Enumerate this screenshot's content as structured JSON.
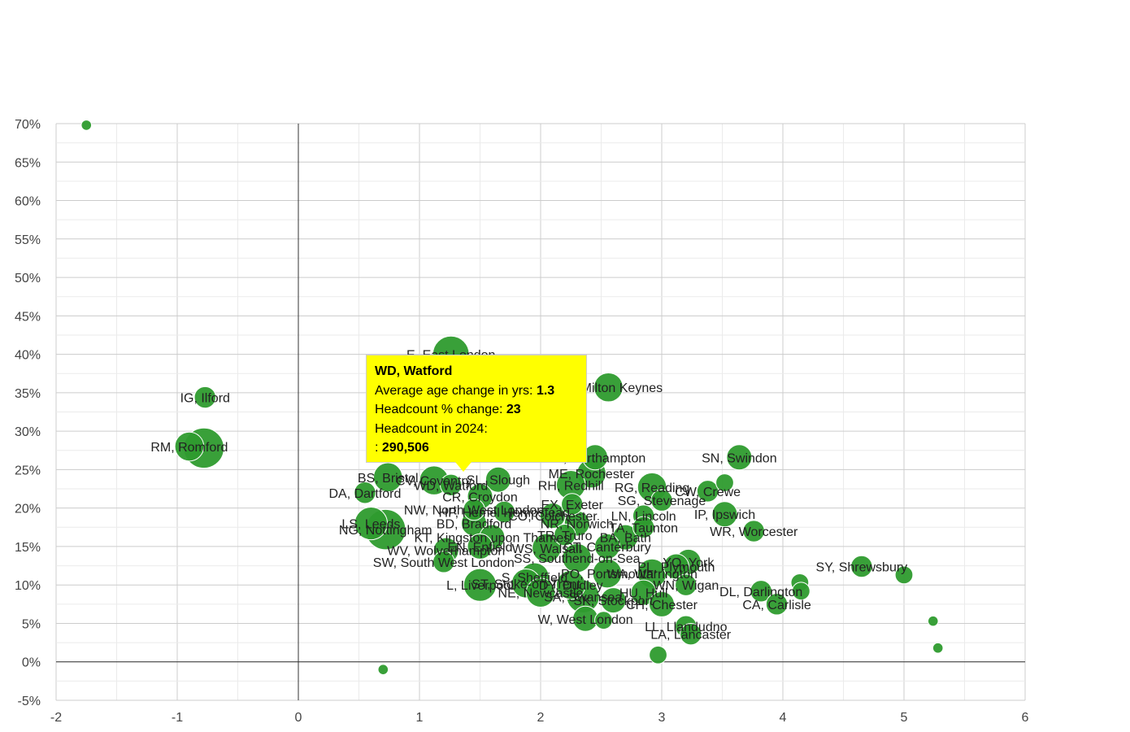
{
  "chart_data": {
    "type": "scatter",
    "xlim": [
      -2,
      6
    ],
    "ylim": [
      -5,
      70
    ],
    "x_ticks": [
      "-2",
      "-1",
      "0",
      "1",
      "2",
      "3",
      "4",
      "5",
      "6"
    ],
    "y_ticks": [
      "-5%",
      "0%",
      "5%",
      "10%",
      "15%",
      "20%",
      "25%",
      "30%",
      "35%",
      "40%",
      "45%",
      "50%",
      "55%",
      "60%",
      "65%",
      "70%"
    ],
    "grid": true,
    "bubble_color": "#2e9b2e",
    "points": [
      {
        "label": "",
        "x": -1.75,
        "y": 69.8,
        "size": 1
      },
      {
        "label": "E, East London",
        "x": 1.26,
        "y": 40.0,
        "size": 8
      },
      {
        "label": "IG, Ilford",
        "x": -0.77,
        "y": 34.4,
        "size": 4
      },
      {
        "label": "MK, Milton Keynes",
        "x": 2.56,
        "y": 35.7,
        "size": 6
      },
      {
        "label": "RM, Romford",
        "x": -0.9,
        "y": 28.0,
        "size": 6
      },
      {
        "label": "",
        "x": -0.78,
        "y": 27.8,
        "size": 9
      },
      {
        "label": "NN, Northampton",
        "x": 2.45,
        "y": 26.6,
        "size": 5
      },
      {
        "label": "SN, Swindon",
        "x": 3.64,
        "y": 26.6,
        "size": 5
      },
      {
        "label": "WD, Watford",
        "x": 1.26,
        "y": 23.0,
        "size": 4
      },
      {
        "label": "BS, Bristol",
        "x": 0.74,
        "y": 24.0,
        "size": 6
      },
      {
        "label": "CV, Coventry",
        "x": 1.12,
        "y": 23.6,
        "size": 6
      },
      {
        "label": "SL, Slough",
        "x": 1.65,
        "y": 23.7,
        "size": 5
      },
      {
        "label": "ME, Rochester",
        "x": 2.42,
        "y": 24.5,
        "size": 6
      },
      {
        "label": "RH, Redhill",
        "x": 2.25,
        "y": 23.0,
        "size": 6
      },
      {
        "label": "RG, Reading",
        "x": 2.92,
        "y": 22.7,
        "size": 6
      },
      {
        "label": "",
        "x": 3.52,
        "y": 23.3,
        "size": 3
      },
      {
        "label": "CW, Crewe",
        "x": 3.38,
        "y": 22.2,
        "size": 4
      },
      {
        "label": "SG, Stevenage",
        "x": 3.0,
        "y": 21.0,
        "size": 4
      },
      {
        "label": "DA, Dartford",
        "x": 0.55,
        "y": 22.0,
        "size": 4
      },
      {
        "label": "CR, Croydon",
        "x": 1.5,
        "y": 21.5,
        "size": 5
      },
      {
        "label": "EX, Exeter",
        "x": 2.26,
        "y": 20.5,
        "size": 4
      },
      {
        "label": "NW, North West London",
        "x": 1.45,
        "y": 19.8,
        "size": 4
      },
      {
        "label": "HP, Hemel Hempstead",
        "x": 1.7,
        "y": 19.5,
        "size": 4
      },
      {
        "label": "CO, Colchester",
        "x": 2.1,
        "y": 19.0,
        "size": 5
      },
      {
        "label": "LN, Lincoln",
        "x": 2.85,
        "y": 19.0,
        "size": 4
      },
      {
        "label": "IP, Ipswich",
        "x": 3.52,
        "y": 19.2,
        "size": 5
      },
      {
        "label": "LS, Leeds",
        "x": 0.6,
        "y": 18.0,
        "size": 7
      },
      {
        "label": "NG, Nottingham",
        "x": 0.72,
        "y": 17.2,
        "size": 9
      },
      {
        "label": "BD, Bradford",
        "x": 1.45,
        "y": 18.0,
        "size": 5
      },
      {
        "label": "NR, Norwich",
        "x": 2.3,
        "y": 18.0,
        "size": 5
      },
      {
        "label": "TA, Taunton",
        "x": 2.85,
        "y": 17.5,
        "size": 4
      },
      {
        "label": "WR, Worcester",
        "x": 3.76,
        "y": 17.0,
        "size": 4
      },
      {
        "label": "KT, Kingston upon Thames",
        "x": 1.6,
        "y": 16.2,
        "size": 5
      },
      {
        "label": "TR, Truro",
        "x": 2.2,
        "y": 16.5,
        "size": 4
      },
      {
        "label": "BA, Bath",
        "x": 2.7,
        "y": 16.2,
        "size": 5
      },
      {
        "label": "EN, Enfield",
        "x": 1.5,
        "y": 15.0,
        "size": 5
      },
      {
        "label": "WS, Walsall",
        "x": 2.05,
        "y": 14.8,
        "size": 6
      },
      {
        "label": "CT, Canterbury",
        "x": 2.55,
        "y": 15.0,
        "size": 5
      },
      {
        "label": "WV, Wolverhampton",
        "x": 1.22,
        "y": 14.5,
        "size": 5
      },
      {
        "label": "SS, Southend-on-Sea",
        "x": 2.3,
        "y": 13.5,
        "size": 6
      },
      {
        "label": "SW, South West London",
        "x": 1.2,
        "y": 13.0,
        "size": 4
      },
      {
        "label": "YO, York",
        "x": 3.22,
        "y": 13.0,
        "size": 5
      },
      {
        "label": "PL, Plymouth",
        "x": 3.12,
        "y": 12.4,
        "size": 5
      },
      {
        "label": "SY, Shrewsbury",
        "x": 4.65,
        "y": 12.4,
        "size": 4
      },
      {
        "label": "PO, Portsmouth",
        "x": 2.55,
        "y": 11.5,
        "size": 6
      },
      {
        "label": "WA, Warrington",
        "x": 2.92,
        "y": 11.5,
        "size": 6
      },
      {
        "label": "",
        "x": 5.0,
        "y": 11.3,
        "size": 3
      },
      {
        "label": "S, Sheffield",
        "x": 1.95,
        "y": 11.0,
        "size": 6
      },
      {
        "label": "WN, Wigan",
        "x": 3.2,
        "y": 10.0,
        "size": 4
      },
      {
        "label": "L, Liverpool",
        "x": 1.5,
        "y": 10.0,
        "size": 7
      },
      {
        "label": "ST, Stoke-on-Trent",
        "x": 1.88,
        "y": 10.2,
        "size": 6
      },
      {
        "label": "DY, Dudley",
        "x": 2.25,
        "y": 10.0,
        "size": 6
      },
      {
        "label": "DL, Darlington",
        "x": 3.82,
        "y": 9.2,
        "size": 4
      },
      {
        "label": "",
        "x": 4.14,
        "y": 10.3,
        "size": 3
      },
      {
        "label": "",
        "x": 4.15,
        "y": 9.2,
        "size": 3
      },
      {
        "label": "NE, Newcastle",
        "x": 2.0,
        "y": 9.0,
        "size": 6
      },
      {
        "label": "HU, Hull",
        "x": 2.85,
        "y": 9.0,
        "size": 5
      },
      {
        "label": "SA, Swansea",
        "x": 2.35,
        "y": 8.5,
        "size": 7
      },
      {
        "label": "SK, Stockport",
        "x": 2.6,
        "y": 8.0,
        "size": 5
      },
      {
        "label": "CH, Chester",
        "x": 3.0,
        "y": 7.5,
        "size": 5
      },
      {
        "label": "CA, Carlisle",
        "x": 3.95,
        "y": 7.5,
        "size": 4
      },
      {
        "label": "W, West London",
        "x": 2.37,
        "y": 5.6,
        "size": 5
      },
      {
        "label": "",
        "x": 2.52,
        "y": 5.4,
        "size": 3
      },
      {
        "label": "",
        "x": 5.24,
        "y": 5.3,
        "size": 1
      },
      {
        "label": "LL, Llandudno",
        "x": 3.2,
        "y": 4.6,
        "size": 4
      },
      {
        "label": "LA, Lancaster",
        "x": 3.24,
        "y": 3.6,
        "size": 4
      },
      {
        "label": "",
        "x": 5.28,
        "y": 1.8,
        "size": 1
      },
      {
        "label": "",
        "x": 2.97,
        "y": 0.9,
        "size": 3
      },
      {
        "label": "",
        "x": 0.7,
        "y": -1.0,
        "size": 1
      }
    ]
  },
  "tooltip": {
    "title": "WD, Watford",
    "row1_label": "Average age change in yrs:",
    "row1_value": "1.3",
    "row2_label": "Headcount % change:",
    "row2_value": "23",
    "row3_label": "Headcount in 2024:",
    "row4_label": ":",
    "row4_value": "290,506"
  }
}
